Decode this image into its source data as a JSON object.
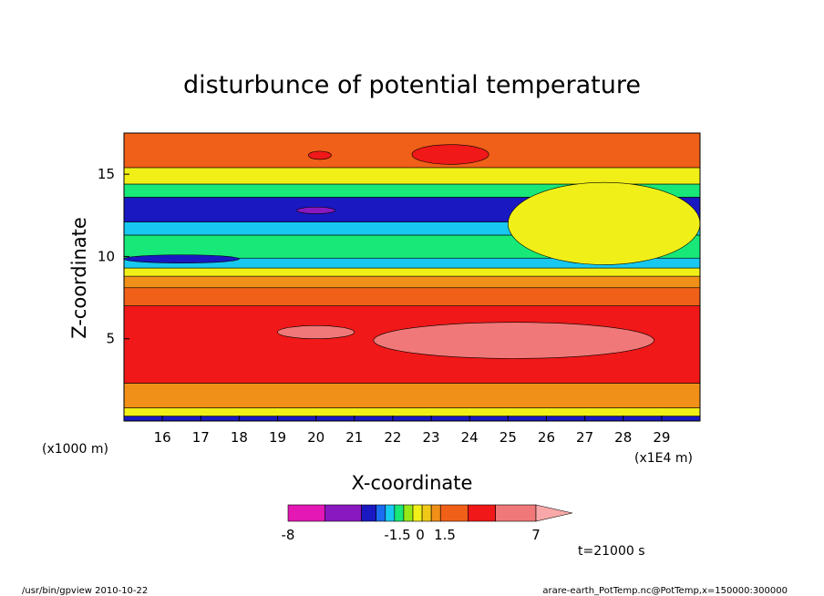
{
  "chart_data": {
    "type": "heatmap",
    "title": "disturbunce of potential temperature",
    "xlabel": "X-coordinate",
    "ylabel": "Z-coordinate",
    "x_unit_left": "(x1000 m)",
    "x_unit_right": "(x1E4 m)",
    "x_ticks": [
      "16",
      "17",
      "18",
      "19",
      "20",
      "21",
      "22",
      "23",
      "24",
      "25",
      "26",
      "27",
      "28",
      "29"
    ],
    "y_ticks": [
      "5",
      "10",
      "15"
    ],
    "xlim": [
      15,
      30
    ],
    "ylim": [
      0,
      17.5
    ],
    "time_label": "t=21000 s",
    "colorbar": {
      "labels": [
        "-8",
        "-1.5",
        "0",
        "1.5",
        "7"
      ],
      "colors": [
        "#e418b4",
        "#8a18c0",
        "#1a18c0",
        "#1a6cf0",
        "#18c8f0",
        "#18e878",
        "#98e818",
        "#f0f018",
        "#f0c818",
        "#f09018",
        "#f06018",
        "#f01818",
        "#f07878",
        "#f8a8a8"
      ]
    },
    "bands": [
      {
        "z": [
          0.0,
          0.3
        ],
        "value": -1.5,
        "color": "#1a18c0"
      },
      {
        "z": [
          0.3,
          0.8
        ],
        "value": 0.3,
        "color": "#f0f018"
      },
      {
        "z": [
          0.8,
          2.3
        ],
        "value": 1.2,
        "color": "#f09018"
      },
      {
        "z": [
          2.3,
          7.0
        ],
        "value": 4.5,
        "color": "#f01818"
      },
      {
        "z": [
          7.0,
          8.1
        ],
        "value": 1.8,
        "color": "#f06018"
      },
      {
        "z": [
          8.1,
          8.8
        ],
        "value": 1.2,
        "color": "#f09018"
      },
      {
        "z": [
          8.8,
          9.3
        ],
        "value": 0.4,
        "color": "#f0f018"
      },
      {
        "z": [
          9.3,
          9.9
        ],
        "value": -0.5,
        "color": "#18c8f0"
      },
      {
        "z": [
          9.9,
          11.3
        ],
        "value": -0.1,
        "color": "#18e878"
      },
      {
        "z": [
          11.3,
          12.1
        ],
        "value": -0.5,
        "color": "#18c8f0"
      },
      {
        "z": [
          12.1,
          13.6
        ],
        "value": -2.0,
        "color": "#1a18c0"
      },
      {
        "z": [
          13.6,
          14.4
        ],
        "value": -0.1,
        "color": "#18e878"
      },
      {
        "z": [
          14.4,
          15.4
        ],
        "value": 0.3,
        "color": "#f0f018"
      },
      {
        "z": [
          15.4,
          17.5
        ],
        "value": 1.4,
        "color": "#f06018"
      }
    ],
    "patches": [
      {
        "x": [
          21.5,
          28.8
        ],
        "z": [
          3.8,
          6.0
        ],
        "value": 5.5,
        "color": "#f07878"
      },
      {
        "x": [
          19.0,
          21.0
        ],
        "z": [
          5.0,
          5.8
        ],
        "value": 5.5,
        "color": "#f07878"
      },
      {
        "x": [
          22.5,
          24.5
        ],
        "z": [
          15.6,
          16.8
        ],
        "value": 3.5,
        "color": "#f01818"
      },
      {
        "x": [
          19.8,
          20.4
        ],
        "z": [
          15.9,
          16.4
        ],
        "value": 3.5,
        "color": "#f01818"
      },
      {
        "x": [
          25.0,
          30.0
        ],
        "z": [
          9.5,
          14.5
        ],
        "value": 0.3,
        "color": "#f0f018"
      },
      {
        "x": [
          15.0,
          18.0
        ],
        "z": [
          9.6,
          10.1
        ],
        "value": -4.0,
        "color": "#1a18c0"
      },
      {
        "x": [
          19.5,
          20.5
        ],
        "z": [
          12.6,
          13.0
        ],
        "value": -5.0,
        "color": "#8a18c0"
      }
    ]
  },
  "footer": {
    "left": "/usr/bin/gpview   2010-10-22",
    "right": "arare-earth_PotTemp.nc@PotTemp,x=150000:300000"
  }
}
